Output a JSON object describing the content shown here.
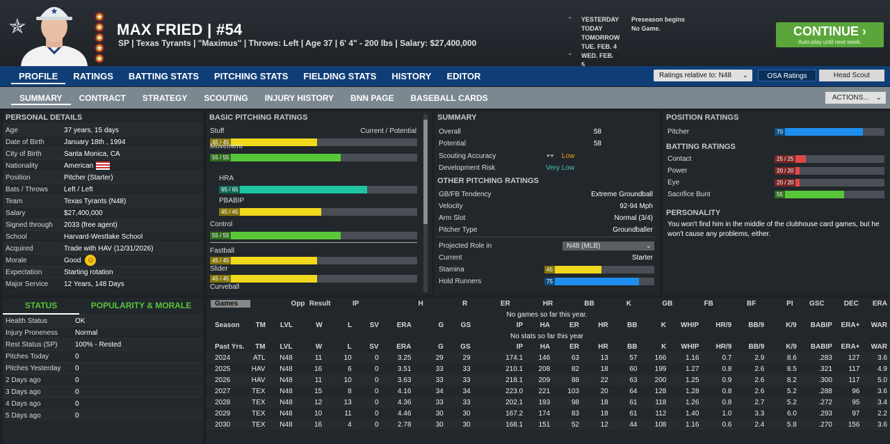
{
  "header": {
    "name": "MAX FRIED",
    "number": "#54",
    "info": "SP | Texas Tyrants | \"Maximus\" | Throws: Left  |  Age 37  |  6' 4\"  - 200 lbs  |  Salary: $27,400,000",
    "continue_label": "CONTINUE",
    "continue_sub": "Auto-play until next week.",
    "dates": [
      {
        "day": "YESTERDAY",
        "event": "Preseason begins"
      },
      {
        "day": "TODAY",
        "event": "No Game."
      },
      {
        "day": "TOMORROW",
        "event": ""
      },
      {
        "day": "TUE. FEB. 4",
        "event": ""
      },
      {
        "day": "WED. FEB. 5",
        "event": ""
      }
    ]
  },
  "nav": {
    "main": [
      "PROFILE",
      "RATINGS",
      "BATTING STATS",
      "PITCHING STATS",
      "FIELDING STATS",
      "HISTORY",
      "EDITOR"
    ],
    "sub": [
      "SUMMARY",
      "CONTRACT",
      "STRATEGY",
      "SCOUTING",
      "INJURY HISTORY",
      "BNN PAGE",
      "BASEBALL CARDS"
    ],
    "ratings_relative": "Ratings relative to: N48",
    "osa": "OSA Ratings",
    "head_scout": "Head Scout",
    "actions": "ACTIONS..."
  },
  "personal": {
    "title": "PERSONAL DETAILS",
    "rows": [
      {
        "k": "Age",
        "v": "37 years, 15 days"
      },
      {
        "k": "Date of Birth",
        "v": "January 18th , 1994"
      },
      {
        "k": "City of Birth",
        "v": "Santa Monica, CA"
      },
      {
        "k": "Nationality",
        "v": "American"
      },
      {
        "k": "Position",
        "v": "Pitcher (Starter)"
      },
      {
        "k": "Bats / Throws",
        "v": "Left / Left"
      },
      {
        "k": "Team",
        "v": "Texas Tyrants (N48)"
      },
      {
        "k": "Salary",
        "v": "$27,400,000"
      },
      {
        "k": "Signed through",
        "v": "2033 (free agent)"
      },
      {
        "k": "School",
        "v": "Harvard-Westlake School"
      },
      {
        "k": "Acquired",
        "v": "Trade with HAV (12/31/2026)"
      },
      {
        "k": "Morale",
        "v": "Good"
      },
      {
        "k": "Expectation",
        "v": "Starting rotation"
      },
      {
        "k": "Major Service",
        "v": "12 Years, 148 Days"
      }
    ]
  },
  "status": {
    "tab1": "STATUS",
    "tab2": "POPULARITY & MORALE",
    "rows": [
      {
        "k": "Health Status",
        "v": "OK"
      },
      {
        "k": "Injury Proneness",
        "v": "Normal"
      },
      {
        "k": "Rest Status (SP)",
        "v": "100% - Rested"
      },
      {
        "k": "Pitches Today",
        "v": "0"
      },
      {
        "k": "Pitches Yesterday",
        "v": "0"
      },
      {
        "k": "2 Days ago",
        "v": "0"
      },
      {
        "k": "3 Days ago",
        "v": "0"
      },
      {
        "k": "4 Days ago",
        "v": "0"
      },
      {
        "k": "5 Days ago",
        "v": "0"
      }
    ]
  },
  "basic": {
    "title": "BASIC PITCHING RATINGS",
    "cur_pot": "Current / Potential",
    "ratings": [
      {
        "name": "Stuff",
        "label": "45 / 45",
        "value": 45,
        "color": "#f0d81c"
      },
      {
        "name": "Movement",
        "label": "55 / 55",
        "value": 55,
        "color": "#58c83a"
      },
      {
        "name": "HRA",
        "label": "65 / 65",
        "value": 65,
        "color": "#1ec4a0"
      },
      {
        "name": "PBABIP",
        "label": "45 / 45",
        "value": 45,
        "color": "#f0d81c"
      },
      {
        "name": "Control",
        "label": "55 / 55",
        "value": 55,
        "color": "#58c83a"
      },
      {
        "name": "Fastball",
        "label": "45 / 45",
        "value": 45,
        "color": "#f0d81c"
      },
      {
        "name": "Slider",
        "label": "45 / 45",
        "value": 45,
        "color": "#f0d81c"
      },
      {
        "name": "Curveball",
        "label": "",
        "value": 0,
        "color": "#f0d81c"
      }
    ]
  },
  "summary": {
    "title": "SUMMARY",
    "overall": "58",
    "potential": "58",
    "scout_acc": "Low",
    "dev_risk": "Very Low",
    "other_title": "OTHER PITCHING RATINGS",
    "gbfb": "Extreme Groundball",
    "velocity": "92-94 Mph",
    "arm_slot": "Normal (3/4)",
    "pitcher_type": "Groundballer",
    "proj_role": "N48 (MLB)",
    "current": "Starter",
    "stamina": 45,
    "hold": 75,
    "labels": {
      "overall": "Overall",
      "potential": "Potential",
      "scout_acc": "Scouting Accuracy",
      "dev_risk": "Development Risk",
      "gbfb": "GB/FB Tendency",
      "velocity": "Velocity",
      "arm_slot": "Arm Slot",
      "pitcher_type": "Pitcher Type",
      "proj_role": "Projected Role in",
      "current": "Current",
      "stamina": "Stamina",
      "hold": "Hold Runners"
    }
  },
  "position": {
    "title": "POSITION RATINGS",
    "pitcher_label": "Pitcher",
    "pitcher": 70,
    "bat_title": "BATTING RATINGS",
    "batting": [
      {
        "k": "Contact",
        "label": "25 / 25",
        "value": 25
      },
      {
        "k": "Power",
        "label": "20 / 20",
        "value": 20
      },
      {
        "k": "Eye",
        "label": "20 / 20",
        "value": 20
      },
      {
        "k": "Sacrifice Bunt",
        "label": "55",
        "value": 55
      }
    ],
    "pers_title": "PERSONALITY",
    "personality": "You won't find him in the middle of the clubhouse card games, but he won't cause any problems, either."
  },
  "games": {
    "select": "Games",
    "headers": [
      "Opp",
      "Result",
      "IP",
      "H",
      "R",
      "ER",
      "HR",
      "BB",
      "K",
      "GB",
      "FB",
      "BF",
      "PI",
      "GSC",
      "DEC",
      "ERA"
    ],
    "none": "No games so far this year."
  },
  "season": {
    "headers": [
      "Season",
      "TM",
      "LVL",
      "W",
      "L",
      "SV",
      "ERA",
      "G",
      "GS",
      "IP",
      "HA",
      "ER",
      "HR",
      "BB",
      "K",
      "WHIP",
      "HR/9",
      "BB/9",
      "K/9",
      "BABIP",
      "ERA+",
      "WAR"
    ],
    "none": "No stats so far this year"
  },
  "past": {
    "headers": [
      "Past Yrs.",
      "TM",
      "LVL",
      "W",
      "L",
      "SV",
      "ERA",
      "G",
      "GS",
      "IP",
      "HA",
      "ER",
      "HR",
      "BB",
      "K",
      "WHIP",
      "HR/9",
      "BB/9",
      "K/9",
      "BABIP",
      "ERA+",
      "WAR"
    ],
    "rows": [
      [
        "2024",
        "ATL",
        "N48",
        "11",
        "10",
        "0",
        "3.25",
        "29",
        "29",
        "174.1",
        "146",
        "63",
        "13",
        "57",
        "166",
        "1.16",
        "0.7",
        "2.9",
        "8.6",
        ".283",
        "127",
        "3.6"
      ],
      [
        "2025",
        "HAV",
        "N48",
        "16",
        "6",
        "0",
        "3.51",
        "33",
        "33",
        "210.1",
        "208",
        "82",
        "18",
        "60",
        "199",
        "1.27",
        "0.8",
        "2.6",
        "8.5",
        ".321",
        "117",
        "4.9"
      ],
      [
        "2026",
        "HAV",
        "N48",
        "11",
        "10",
        "0",
        "3.63",
        "33",
        "33",
        "218.1",
        "209",
        "88",
        "22",
        "63",
        "200",
        "1.25",
        "0.9",
        "2.6",
        "8.2",
        ".300",
        "117",
        "5.0"
      ],
      [
        "2027",
        "TEX",
        "N48",
        "15",
        "8",
        "0",
        "4.16",
        "34",
        "34",
        "223.0",
        "221",
        "103",
        "20",
        "64",
        "128",
        "1.28",
        "0.8",
        "2.6",
        "5.2",
        ".288",
        "96",
        "3.6"
      ],
      [
        "2028",
        "TEX",
        "N48",
        "12",
        "13",
        "0",
        "4.36",
        "33",
        "33",
        "202.1",
        "193",
        "98",
        "18",
        "61",
        "118",
        "1.26",
        "0.8",
        "2.7",
        "5.2",
        ".272",
        "95",
        "3.4"
      ],
      [
        "2029",
        "TEX",
        "N48",
        "10",
        "11",
        "0",
        "4.46",
        "30",
        "30",
        "167.2",
        "174",
        "83",
        "18",
        "61",
        "112",
        "1.40",
        "1.0",
        "3.3",
        "6.0",
        ".293",
        "97",
        "2.2"
      ],
      [
        "2030",
        "TEX",
        "N48",
        "16",
        "4",
        "0",
        "2.78",
        "30",
        "30",
        "168.1",
        "151",
        "52",
        "12",
        "44",
        "108",
        "1.16",
        "0.6",
        "2.4",
        "5.8",
        ".270",
        "156",
        "3.6"
      ]
    ]
  }
}
